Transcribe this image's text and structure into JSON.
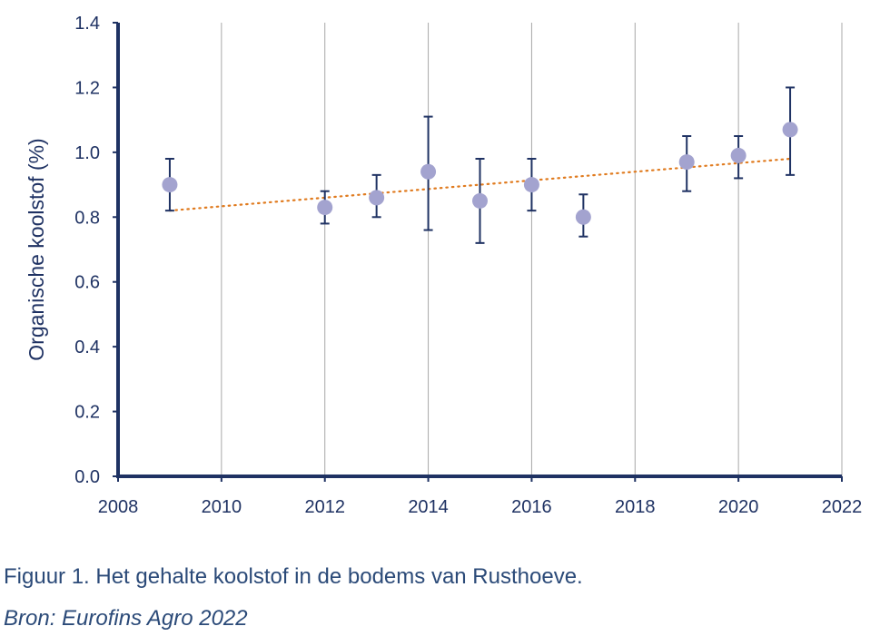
{
  "chart_data": {
    "type": "scatter",
    "title": "",
    "xlabel": "",
    "ylabel": "Organische koolstof (%)",
    "xlim": [
      2008,
      2022
    ],
    "ylim": [
      0.0,
      1.4
    ],
    "x_ticks": [
      "2008",
      "2010",
      "2012",
      "2014",
      "2016",
      "2018",
      "2020",
      "2022"
    ],
    "y_ticks": [
      "0.0",
      "0.2",
      "0.4",
      "0.6",
      "0.8",
      "1.0",
      "1.2",
      "1.4"
    ],
    "vertical_grid": true,
    "legend": "none",
    "series": [
      {
        "points": [
          {
            "x": 2009,
            "y": 0.9,
            "err_low": 0.82,
            "err_high": 0.98
          },
          {
            "x": 2012,
            "y": 0.83,
            "err_low": 0.78,
            "err_high": 0.88
          },
          {
            "x": 2013,
            "y": 0.86,
            "err_low": 0.8,
            "err_high": 0.93
          },
          {
            "x": 2014,
            "y": 0.94,
            "err_low": 0.76,
            "err_high": 1.11
          },
          {
            "x": 2015,
            "y": 0.85,
            "err_low": 0.72,
            "err_high": 0.98
          },
          {
            "x": 2016,
            "y": 0.9,
            "err_low": 0.82,
            "err_high": 0.98
          },
          {
            "x": 2017,
            "y": 0.8,
            "err_low": 0.74,
            "err_high": 0.87
          },
          {
            "x": 2019,
            "y": 0.97,
            "err_low": 0.88,
            "err_high": 1.05
          },
          {
            "x": 2020,
            "y": 0.99,
            "err_low": 0.92,
            "err_high": 1.05
          },
          {
            "x": 2021,
            "y": 1.07,
            "err_low": 0.93,
            "err_high": 1.2
          }
        ]
      }
    ],
    "trendline": {
      "style": "dotted",
      "x": [
        2009,
        2021
      ],
      "y": [
        0.82,
        0.98
      ]
    },
    "colors": {
      "axis": "#1f3263",
      "grid": "#a8a8a8",
      "marker": "#a3a3cf",
      "errorbar": "#1f3263",
      "trendline": "#e07b1f",
      "tick_text": "#1f3263"
    }
  },
  "caption": {
    "title": "Figuur 1. Het gehalte koolstof in de bodems van Rusthoeve.",
    "source": "Bron: Eurofins Agro 2022"
  }
}
